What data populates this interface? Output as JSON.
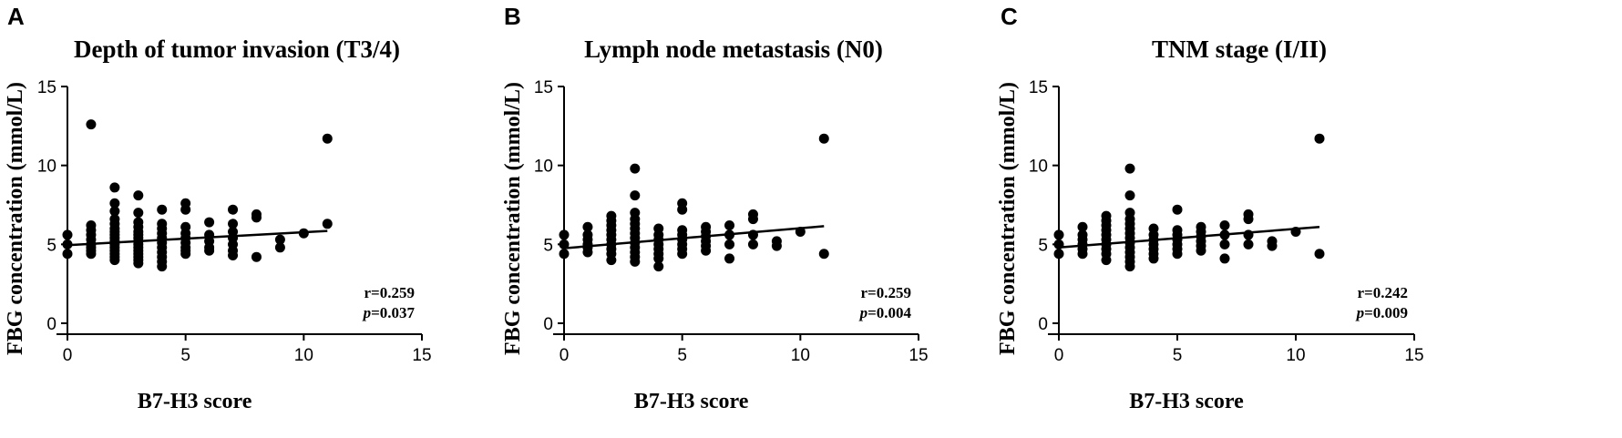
{
  "chart_data": [
    {
      "type": "scatter",
      "panel_label": "A",
      "title": "Depth of tumor invasion (T3/4)",
      "xlabel": "B7-H3 score",
      "ylabel": "FBG concentration (mmol/L)",
      "xlim": [
        0,
        15
      ],
      "ylim": [
        0,
        15
      ],
      "xticks": [
        0,
        5,
        10,
        15
      ],
      "yticks": [
        0,
        5,
        10,
        15
      ],
      "grid": false,
      "regression": {
        "x": [
          0,
          11
        ],
        "y": [
          4.95,
          5.85
        ]
      },
      "annotation": {
        "r": "r=0.259",
        "p_symbol": "p",
        "p_value": "=0.037"
      },
      "points": [
        [
          0,
          5.6
        ],
        [
          0,
          5.0
        ],
        [
          0,
          4.4
        ],
        [
          1,
          12.6
        ],
        [
          1,
          6.2
        ],
        [
          1,
          5.9
        ],
        [
          1,
          5.6
        ],
        [
          1,
          5.3
        ],
        [
          1,
          5.0
        ],
        [
          1,
          4.8
        ],
        [
          1,
          4.6
        ],
        [
          1,
          4.4
        ],
        [
          2,
          8.6
        ],
        [
          2,
          7.6
        ],
        [
          2,
          7.1
        ],
        [
          2,
          6.6
        ],
        [
          2,
          6.3
        ],
        [
          2,
          6.0
        ],
        [
          2,
          5.8
        ],
        [
          2,
          5.6
        ],
        [
          2,
          5.4
        ],
        [
          2,
          5.2
        ],
        [
          2,
          5.0
        ],
        [
          2,
          4.8
        ],
        [
          2,
          4.6
        ],
        [
          2,
          4.4
        ],
        [
          2,
          4.2
        ],
        [
          2,
          4.0
        ],
        [
          3,
          8.1
        ],
        [
          3,
          7.0
        ],
        [
          3,
          6.4
        ],
        [
          3,
          6.1
        ],
        [
          3,
          5.8
        ],
        [
          3,
          5.6
        ],
        [
          3,
          5.4
        ],
        [
          3,
          5.2
        ],
        [
          3,
          5.0
        ],
        [
          3,
          4.8
        ],
        [
          3,
          4.6
        ],
        [
          3,
          4.4
        ],
        [
          3,
          4.2
        ],
        [
          3,
          4.0
        ],
        [
          3,
          3.8
        ],
        [
          4,
          7.2
        ],
        [
          4,
          6.3
        ],
        [
          4,
          6.0
        ],
        [
          4,
          5.7
        ],
        [
          4,
          5.4
        ],
        [
          4,
          5.1
        ],
        [
          4,
          4.8
        ],
        [
          4,
          4.5
        ],
        [
          4,
          4.2
        ],
        [
          4,
          3.9
        ],
        [
          4,
          3.6
        ],
        [
          5,
          7.6
        ],
        [
          5,
          7.2
        ],
        [
          5,
          6.1
        ],
        [
          5,
          5.7
        ],
        [
          5,
          5.4
        ],
        [
          5,
          5.1
        ],
        [
          5,
          4.8
        ],
        [
          5,
          4.6
        ],
        [
          5,
          4.4
        ],
        [
          6,
          6.4
        ],
        [
          6,
          5.6
        ],
        [
          6,
          5.2
        ],
        [
          6,
          4.8
        ],
        [
          6,
          4.6
        ],
        [
          7,
          7.2
        ],
        [
          7,
          6.3
        ],
        [
          7,
          5.8
        ],
        [
          7,
          5.4
        ],
        [
          7,
          5.0
        ],
        [
          7,
          4.6
        ],
        [
          7,
          4.3
        ],
        [
          8,
          6.9
        ],
        [
          8,
          6.7
        ],
        [
          8,
          4.2
        ],
        [
          9,
          5.3
        ],
        [
          9,
          4.8
        ],
        [
          10,
          5.7
        ],
        [
          11,
          11.7
        ],
        [
          11,
          6.3
        ]
      ]
    },
    {
      "type": "scatter",
      "panel_label": "B",
      "title": "Lymph node metastasis (N0)",
      "xlabel": "B7-H3 score",
      "ylabel": "FBG concentration (mmol/L)",
      "xlim": [
        0,
        15
      ],
      "ylim": [
        0,
        15
      ],
      "xticks": [
        0,
        5,
        10,
        15
      ],
      "yticks": [
        0,
        5,
        10,
        15
      ],
      "grid": false,
      "regression": {
        "x": [
          0,
          11
        ],
        "y": [
          4.75,
          6.15
        ]
      },
      "annotation": {
        "r": "r=0.259",
        "p_symbol": "p",
        "p_value": "=0.004"
      },
      "points": [
        [
          0,
          5.6
        ],
        [
          0,
          5.0
        ],
        [
          0,
          4.4
        ],
        [
          1,
          6.1
        ],
        [
          1,
          5.6
        ],
        [
          1,
          5.3
        ],
        [
          1,
          5.0
        ],
        [
          1,
          4.8
        ],
        [
          1,
          4.5
        ],
        [
          2,
          6.8
        ],
        [
          2,
          6.5
        ],
        [
          2,
          6.2
        ],
        [
          2,
          5.9
        ],
        [
          2,
          5.6
        ],
        [
          2,
          5.3
        ],
        [
          2,
          5.0
        ],
        [
          2,
          4.7
        ],
        [
          2,
          4.4
        ],
        [
          2,
          4.0
        ],
        [
          3,
          9.8
        ],
        [
          3,
          8.1
        ],
        [
          3,
          7.0
        ],
        [
          3,
          6.6
        ],
        [
          3,
          6.3
        ],
        [
          3,
          6.0
        ],
        [
          3,
          5.7
        ],
        [
          3,
          5.4
        ],
        [
          3,
          5.1
        ],
        [
          3,
          4.8
        ],
        [
          3,
          4.5
        ],
        [
          3,
          4.2
        ],
        [
          3,
          3.9
        ],
        [
          4,
          6.0
        ],
        [
          4,
          5.6
        ],
        [
          4,
          5.3
        ],
        [
          4,
          5.0
        ],
        [
          4,
          4.7
        ],
        [
          4,
          4.4
        ],
        [
          4,
          4.1
        ],
        [
          4,
          3.6
        ],
        [
          5,
          7.6
        ],
        [
          5,
          7.2
        ],
        [
          5,
          5.9
        ],
        [
          5,
          5.6
        ],
        [
          5,
          5.3
        ],
        [
          5,
          5.0
        ],
        [
          5,
          4.7
        ],
        [
          5,
          4.4
        ],
        [
          6,
          6.1
        ],
        [
          6,
          5.8
        ],
        [
          6,
          5.5
        ],
        [
          6,
          5.2
        ],
        [
          6,
          4.9
        ],
        [
          6,
          4.6
        ],
        [
          7,
          6.2
        ],
        [
          7,
          5.6
        ],
        [
          7,
          5.0
        ],
        [
          7,
          4.1
        ],
        [
          8,
          6.9
        ],
        [
          8,
          6.6
        ],
        [
          8,
          5.6
        ],
        [
          8,
          5.0
        ],
        [
          9,
          5.2
        ],
        [
          9,
          4.9
        ],
        [
          10,
          5.8
        ],
        [
          11,
          11.7
        ],
        [
          11,
          4.4
        ]
      ]
    },
    {
      "type": "scatter",
      "panel_label": "C",
      "title": "TNM stage (I/II)",
      "xlabel": "B7-H3 score",
      "ylabel": "FBG concentration (mmol/L)",
      "xlim": [
        0,
        15
      ],
      "ylim": [
        0,
        15
      ],
      "xticks": [
        0,
        5,
        10,
        15
      ],
      "yticks": [
        0,
        5,
        10,
        15
      ],
      "grid": false,
      "regression": {
        "x": [
          0,
          11
        ],
        "y": [
          4.8,
          6.1
        ]
      },
      "annotation": {
        "r": "r=0.242",
        "p_symbol": "p",
        "p_value": "=0.009"
      },
      "points": [
        [
          0,
          5.6
        ],
        [
          0,
          5.0
        ],
        [
          0,
          4.4
        ],
        [
          1,
          6.1
        ],
        [
          1,
          5.6
        ],
        [
          1,
          5.3
        ],
        [
          1,
          5.0
        ],
        [
          1,
          4.7
        ],
        [
          1,
          4.4
        ],
        [
          2,
          6.8
        ],
        [
          2,
          6.5
        ],
        [
          2,
          6.2
        ],
        [
          2,
          5.9
        ],
        [
          2,
          5.6
        ],
        [
          2,
          5.3
        ],
        [
          2,
          5.0
        ],
        [
          2,
          4.7
        ],
        [
          2,
          4.4
        ],
        [
          2,
          4.0
        ],
        [
          3,
          9.8
        ],
        [
          3,
          8.1
        ],
        [
          3,
          7.0
        ],
        [
          3,
          6.6
        ],
        [
          3,
          6.3
        ],
        [
          3,
          6.0
        ],
        [
          3,
          5.7
        ],
        [
          3,
          5.4
        ],
        [
          3,
          5.1
        ],
        [
          3,
          4.8
        ],
        [
          3,
          4.5
        ],
        [
          3,
          4.2
        ],
        [
          3,
          3.9
        ],
        [
          3,
          3.6
        ],
        [
          4,
          6.0
        ],
        [
          4,
          5.6
        ],
        [
          4,
          5.3
        ],
        [
          4,
          5.0
        ],
        [
          4,
          4.7
        ],
        [
          4,
          4.4
        ],
        [
          4,
          4.1
        ],
        [
          5,
          7.2
        ],
        [
          5,
          5.9
        ],
        [
          5,
          5.6
        ],
        [
          5,
          5.3
        ],
        [
          5,
          5.0
        ],
        [
          5,
          4.7
        ],
        [
          5,
          4.4
        ],
        [
          6,
          6.1
        ],
        [
          6,
          5.8
        ],
        [
          6,
          5.5
        ],
        [
          6,
          5.2
        ],
        [
          6,
          4.9
        ],
        [
          6,
          4.6
        ],
        [
          7,
          6.2
        ],
        [
          7,
          5.6
        ],
        [
          7,
          5.0
        ],
        [
          7,
          4.1
        ],
        [
          8,
          6.9
        ],
        [
          8,
          6.6
        ],
        [
          8,
          5.6
        ],
        [
          8,
          5.0
        ],
        [
          9,
          5.2
        ],
        [
          9,
          4.9
        ],
        [
          10,
          5.8
        ],
        [
          11,
          11.7
        ],
        [
          11,
          4.4
        ]
      ]
    }
  ]
}
